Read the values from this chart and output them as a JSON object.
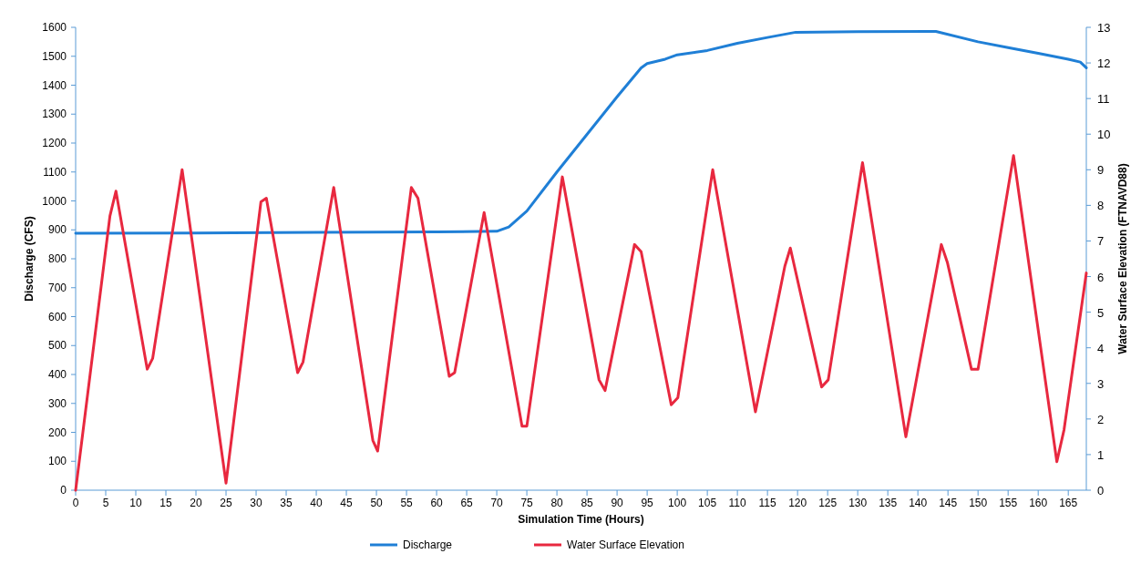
{
  "chart_data": {
    "type": "line",
    "xlabel": "Simulation Time (Hours)",
    "ylabel": "Discharge (CFS)",
    "y2label": "Water Surface Elevation (FTNAVD88)",
    "xlim": [
      0,
      168
    ],
    "xticks": [
      0,
      5,
      10,
      15,
      20,
      25,
      30,
      35,
      40,
      45,
      50,
      55,
      60,
      65,
      70,
      75,
      80,
      85,
      90,
      95,
      100,
      105,
      110,
      115,
      120,
      125,
      130,
      135,
      140,
      145,
      150,
      155,
      160,
      165
    ],
    "ylim": [
      0,
      1600
    ],
    "yticks": [
      0,
      100,
      200,
      300,
      400,
      500,
      600,
      700,
      800,
      900,
      1000,
      1100,
      1200,
      1300,
      1400,
      1500,
      1600
    ],
    "y2lim": [
      0,
      13
    ],
    "y2ticks": [
      0,
      1,
      2,
      3,
      4,
      5,
      6,
      7,
      8,
      9,
      10,
      11,
      12,
      13
    ],
    "grid": false,
    "legend": "bottom",
    "line_style": "solid",
    "marker": "none",
    "series": [
      {
        "name": "Discharge",
        "color": "#1f7fd6",
        "x": [
          0,
          20,
          40,
          60,
          70,
          72,
          75,
          80,
          85,
          90,
          94,
          95,
          98,
          100,
          105,
          110,
          115,
          119.7,
          130,
          143,
          150,
          155,
          160,
          165,
          167,
          168
        ],
        "values": [
          888,
          889,
          891,
          893,
          895,
          910,
          965,
          1100,
          1230,
          1360,
          1460,
          1475,
          1490,
          1505,
          1520,
          1545,
          1565,
          1583,
          1585,
          1586,
          1550,
          1530,
          1510,
          1490,
          1480,
          1460
        ]
      },
      {
        "name": "Water Surface Elevation",
        "color": "#e8283f",
        "axis": "y2",
        "x": [
          0,
          5.7,
          6.7,
          11.9,
          12.8,
          17.7,
          25,
          30.8,
          31.7,
          36.9,
          37.8,
          42.9,
          49.4,
          50.2,
          55.8,
          56.9,
          62.1,
          63,
          67.9,
          74.2,
          75,
          80.9,
          87,
          88,
          92.9,
          94,
          99,
          100.1,
          105.9,
          113,
          117.9,
          118.8,
          124,
          125.1,
          130.8,
          138,
          143.9,
          144.9,
          148.9,
          150,
          155.9,
          163.1,
          164.3,
          168
        ],
        "values": [
          0,
          7.7,
          8.4,
          3.4,
          3.7,
          9,
          0.2,
          8.1,
          8.2,
          3.3,
          3.6,
          8.5,
          1.4,
          1.1,
          8.5,
          8.2,
          3.2,
          3.3,
          7.8,
          1.8,
          1.8,
          8.8,
          3.1,
          2.8,
          6.9,
          6.7,
          2.4,
          2.6,
          9,
          2.2,
          6.3,
          6.8,
          2.9,
          3.1,
          9.2,
          1.5,
          6.9,
          6.4,
          3.4,
          3.4,
          9.4,
          0.8,
          1.7,
          6.1
        ]
      }
    ]
  }
}
